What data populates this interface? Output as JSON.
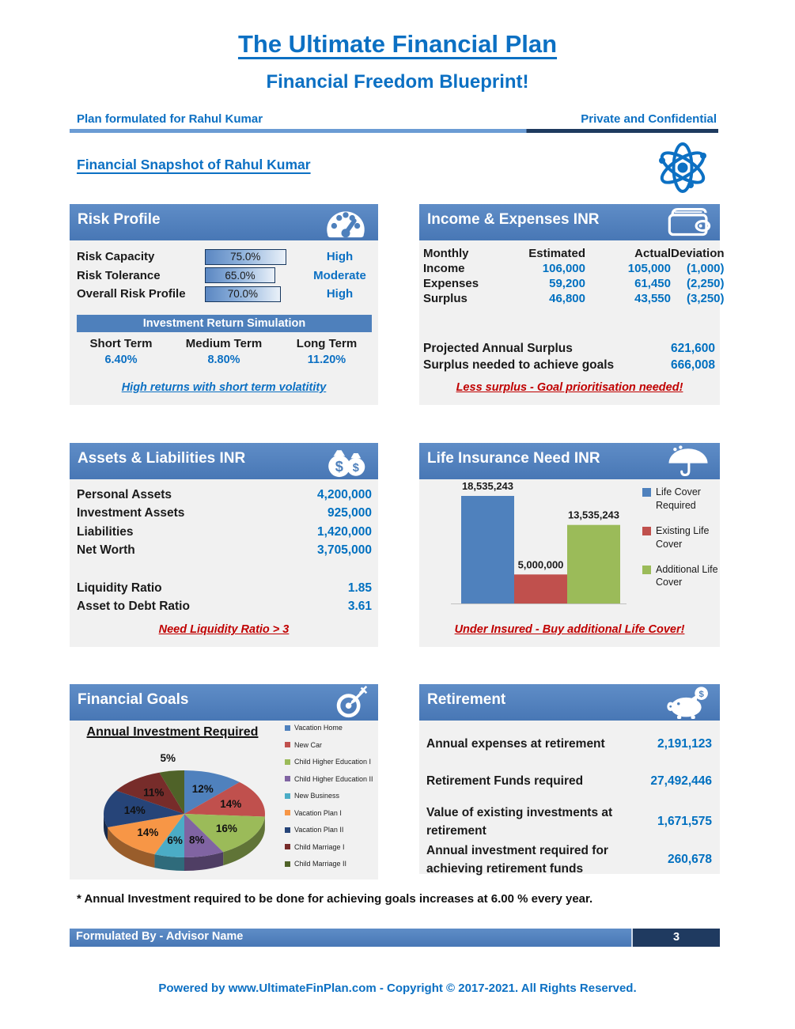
{
  "page": {
    "title": "The Ultimate Financial Plan",
    "subtitle": "Financial Freedom Blueprint!",
    "plan_for": "Plan formulated for Rahul Kumar",
    "confidential": "Private and Confidential",
    "snapshot_heading": "Financial Snapshot of Rahul Kumar",
    "footnote": "* Annual Investment required to be done for achieving goals increases at 6.00 % every year.",
    "footer_left": "Formulated By - Advisor Name",
    "page_number": "3",
    "powered_by": "Powered by www.UltimateFinPlan.com - Copyright © 2017-2021. All Rights Reserved."
  },
  "colors": {
    "accent": "#4E80BC",
    "accent_dark": "#1F3A60",
    "divider_light": "#6B9CD4",
    "divider_dark": "#1E3A5F",
    "value_blue": "#0070C0",
    "warning_red": "#C00000",
    "panel_bg": "#F1F1F1"
  },
  "icons": {
    "snapshot": "atom-icon",
    "risk_profile": "gauge-icon",
    "income_expenses": "wallet-icon",
    "assets_liabilities": "money-bags-icon",
    "life_insurance": "umbrella-icon",
    "financial_goals": "target-icon",
    "retirement": "piggy-bank-icon"
  },
  "risk_profile": {
    "title": "Risk Profile",
    "rows": [
      {
        "label": "Risk Capacity",
        "value": "75.0%",
        "pct": 75,
        "rating": "High"
      },
      {
        "label": "Risk Tolerance",
        "value": "65.0%",
        "pct": 65,
        "rating": "Moderate"
      },
      {
        "label": "Overall Risk Profile",
        "value": "70.0%",
        "pct": 70,
        "rating": "High"
      }
    ],
    "sim_title": "Investment Return Simulation",
    "sim_cols": [
      {
        "label": "Short Term",
        "value": "6.40%"
      },
      {
        "label": "Medium Term",
        "value": "8.80%"
      },
      {
        "label": "Long Term",
        "value": "11.20%"
      }
    ],
    "note": "High returns with short term volatitity"
  },
  "income_expenses": {
    "title": "Income & Expenses INR",
    "headers": [
      "Monthly",
      "Estimated",
      "Actual",
      "Deviation"
    ],
    "rows": [
      {
        "label": "Income",
        "estimated": "106,000",
        "actual": "105,000",
        "deviation": "(1,000)"
      },
      {
        "label": "Expenses",
        "estimated": "59,200",
        "actual": "61,450",
        "deviation": "(2,250)"
      },
      {
        "label": "Surplus",
        "estimated": "46,800",
        "actual": "43,550",
        "deviation": "(3,250)"
      }
    ],
    "summary": [
      {
        "label": "Projected Annual Surplus",
        "value": "621,600"
      },
      {
        "label": "Surplus needed to achieve goals",
        "value": "666,008"
      }
    ],
    "note": "Less surplus - Goal prioritisation needed!"
  },
  "assets_liabilities": {
    "title": "Assets & Liabilities INR",
    "rows": [
      {
        "label": "Personal Assets",
        "value": "4,200,000"
      },
      {
        "label": "Investment Assets",
        "value": "925,000"
      },
      {
        "label": "Liabilities",
        "value": "1,420,000"
      },
      {
        "label": "Net Worth",
        "value": "3,705,000"
      }
    ],
    "ratios": [
      {
        "label": "Liquidity Ratio",
        "value": "1.85"
      },
      {
        "label": "Asset to Debt Ratio",
        "value": "3.61"
      }
    ],
    "note": "Need Liquidity Ratio > 3"
  },
  "life_insurance": {
    "title": "Life Insurance Need INR",
    "note": "Under Insured - Buy additional Life Cover!"
  },
  "financial_goals": {
    "title": "Financial Goals",
    "chart_title": "Annual Investment Required"
  },
  "retirement": {
    "title": "Retirement",
    "rows": [
      {
        "label": "Annual expenses at retirement",
        "value": "2,191,123"
      },
      {
        "label": "Retirement Funds required",
        "value": "27,492,446"
      },
      {
        "label": "Value of existing investments at retirement",
        "value": "1,671,575"
      },
      {
        "label": "Annual investment required for achieving retirement funds",
        "value": "260,678"
      }
    ]
  },
  "chart_data": [
    {
      "type": "bar",
      "title": "Life Insurance Need INR",
      "categories": [
        "Life Cover Required",
        "Existing Life Cover",
        "Additional Life Cover"
      ],
      "values": [
        18535243,
        5000000,
        13535243
      ],
      "labels": [
        "18,535,243",
        "5,000,000",
        "13,535,243"
      ],
      "colors": [
        "#4F81BD",
        "#C0504D",
        "#9BBB59"
      ],
      "legend_position": "right",
      "ylim": [
        0,
        20000000
      ],
      "grid": false
    },
    {
      "type": "pie",
      "title": "Annual Investment Required",
      "labels": [
        "Vacation Home",
        "New Car",
        "Child Higher Education I",
        "Child Higher Education II",
        "New Business",
        "Vacation Plan I",
        "Vacation Plan II",
        "Child Marriage I",
        "Child Marriage II"
      ],
      "values": [
        12,
        14,
        16,
        8,
        6,
        14,
        14,
        11,
        5
      ],
      "display": [
        "12%",
        "14%",
        "16%",
        "8%",
        "6%",
        "14%",
        "14%",
        "11%",
        "5%"
      ],
      "colors": [
        "#4F81BD",
        "#C0504D",
        "#9BBB59",
        "#8064A2",
        "#4BACC6",
        "#F79646",
        "#264478",
        "#772C2A",
        "#4F6228"
      ],
      "legend_position": "right",
      "style": "3d"
    }
  ]
}
